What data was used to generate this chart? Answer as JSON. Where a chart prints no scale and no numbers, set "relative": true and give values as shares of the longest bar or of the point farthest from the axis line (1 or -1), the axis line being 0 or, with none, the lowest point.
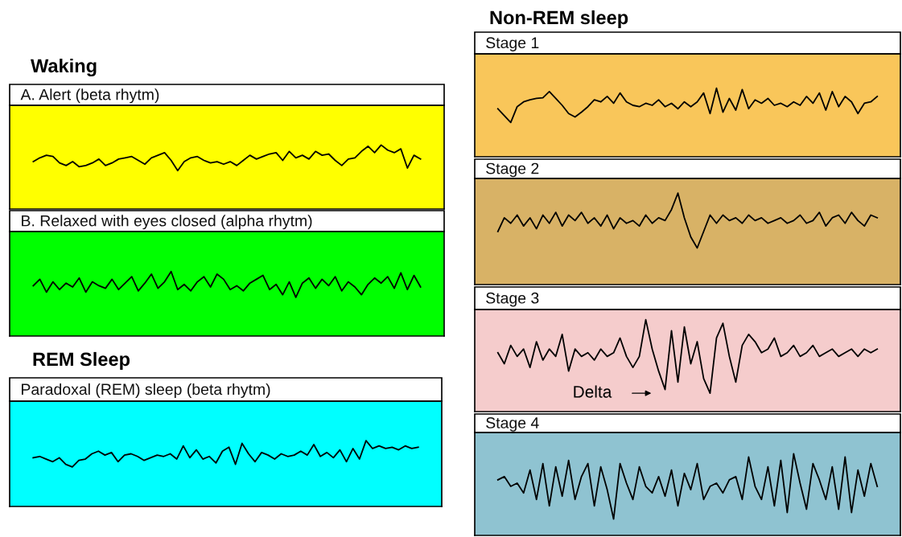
{
  "chart_data": [
    {
      "type": "line",
      "title": "A. Alert (beta rhytm)",
      "annotations": [
        "Waking"
      ],
      "relative": true,
      "categories": [
        null,
        null,
        null,
        null,
        null,
        null,
        null,
        null,
        null,
        null,
        null,
        null,
        null,
        null,
        null,
        null,
        null,
        null,
        null,
        null,
        null,
        null,
        null,
        null,
        null,
        null,
        null,
        null,
        null,
        null,
        null,
        null,
        null,
        null,
        null,
        null,
        null,
        null,
        null,
        null,
        null,
        null,
        null,
        null,
        null,
        null,
        null,
        null,
        null,
        null,
        null,
        null,
        null,
        null,
        null,
        null,
        null,
        null,
        null,
        null
      ],
      "series": [
        {
          "color": "#000000",
          "values": [
            0.74,
            0.8,
            0.84,
            0.82,
            0.72,
            0.68,
            0.74,
            0.66,
            0.68,
            0.72,
            0.78,
            0.68,
            0.72,
            0.78,
            0.8,
            0.82,
            0.76,
            0.7,
            0.8,
            0.84,
            0.88,
            0.76,
            0.6,
            0.74,
            0.8,
            0.82,
            0.76,
            0.72,
            0.74,
            0.7,
            0.74,
            0.68,
            0.76,
            0.84,
            0.78,
            0.82,
            0.86,
            0.88,
            0.76,
            0.9,
            0.8,
            0.84,
            0.78,
            0.9,
            0.84,
            0.86,
            0.76,
            0.68,
            0.78,
            0.8,
            0.9,
            0.98,
            0.88,
            1.0,
            0.92,
            0.88,
            0.94,
            0.64,
            0.84,
            0.78
          ]
        }
      ]
    },
    {
      "type": "line",
      "title": "B. Relaxed with eyes closed (alpha rhytm)",
      "relative": true,
      "categories": [
        null,
        null,
        null,
        null,
        null,
        null,
        null,
        null,
        null,
        null,
        null,
        null,
        null,
        null,
        null,
        null,
        null,
        null,
        null,
        null,
        null,
        null,
        null,
        null,
        null,
        null,
        null,
        null,
        null,
        null,
        null,
        null,
        null,
        null,
        null,
        null,
        null,
        null,
        null,
        null,
        null,
        null,
        null,
        null,
        null,
        null,
        null,
        null,
        null,
        null,
        null,
        null,
        null,
        null,
        null,
        null,
        null,
        null,
        null,
        null
      ],
      "series": [
        {
          "color": "#000000",
          "values": [
            0.78,
            0.88,
            0.68,
            0.84,
            0.72,
            0.82,
            0.76,
            0.9,
            0.68,
            0.84,
            0.78,
            0.74,
            0.88,
            0.72,
            0.82,
            0.92,
            0.7,
            0.82,
            0.96,
            0.74,
            0.84,
            1.0,
            0.72,
            0.8,
            0.7,
            0.84,
            0.92,
            0.76,
            0.96,
            0.88,
            0.72,
            0.78,
            0.7,
            0.82,
            0.88,
            0.94,
            0.72,
            0.8,
            0.64,
            0.84,
            0.6,
            0.82,
            0.9,
            0.74,
            0.88,
            0.78,
            0.92,
            0.7,
            0.84,
            0.76,
            0.64,
            0.8,
            0.9,
            0.82,
            0.92,
            0.74,
            0.98,
            0.72,
            0.94,
            0.76
          ]
        }
      ]
    },
    {
      "type": "line",
      "title": "Paradoxal (REM) sleep (beta rhytm)",
      "annotations": [
        "REM Sleep"
      ],
      "relative": true,
      "categories": [
        null,
        null,
        null,
        null,
        null,
        null,
        null,
        null,
        null,
        null,
        null,
        null,
        null,
        null,
        null,
        null,
        null,
        null,
        null,
        null,
        null,
        null,
        null,
        null,
        null,
        null,
        null,
        null,
        null,
        null,
        null,
        null,
        null,
        null,
        null,
        null,
        null,
        null,
        null,
        null,
        null,
        null,
        null,
        null,
        null,
        null,
        null,
        null,
        null,
        null,
        null,
        null,
        null,
        null,
        null,
        null,
        null,
        null,
        null,
        null
      ],
      "series": [
        {
          "color": "#000000",
          "values": [
            0.74,
            0.76,
            0.72,
            0.68,
            0.74,
            0.64,
            0.6,
            0.7,
            0.72,
            0.8,
            0.84,
            0.78,
            0.82,
            0.68,
            0.78,
            0.8,
            0.76,
            0.7,
            0.74,
            0.78,
            0.76,
            0.8,
            0.72,
            0.92,
            0.74,
            0.86,
            0.72,
            0.76,
            0.66,
            0.84,
            0.9,
            0.64,
            0.96,
            0.8,
            0.68,
            0.82,
            0.78,
            0.72,
            0.8,
            0.76,
            0.78,
            0.84,
            0.78,
            0.94,
            0.76,
            0.82,
            0.74,
            0.86,
            0.68,
            0.88,
            0.72,
            1.0,
            0.88,
            0.92,
            0.88,
            0.9,
            0.86,
            0.92,
            0.88,
            0.9
          ]
        }
      ]
    },
    {
      "type": "line",
      "title": "Stage 1",
      "annotations": [
        "Non-REM sleep"
      ],
      "relative": true,
      "categories": [
        null,
        null,
        null,
        null,
        null,
        null,
        null,
        null,
        null,
        null,
        null,
        null,
        null,
        null,
        null,
        null,
        null,
        null,
        null,
        null,
        null,
        null,
        null,
        null,
        null,
        null,
        null,
        null,
        null,
        null,
        null,
        null,
        null,
        null,
        null,
        null,
        null,
        null,
        null,
        null,
        null,
        null,
        null,
        null,
        null,
        null,
        null,
        null,
        null,
        null,
        null,
        null,
        null,
        null,
        null,
        null,
        null,
        null,
        null,
        null
      ],
      "series": [
        {
          "color": "#000000",
          "values": [
            0.7,
            0.6,
            0.5,
            0.73,
            0.8,
            0.83,
            0.85,
            0.86,
            0.95,
            0.85,
            0.75,
            0.63,
            0.58,
            0.65,
            0.73,
            0.83,
            0.8,
            0.88,
            0.78,
            0.93,
            0.8,
            0.75,
            0.73,
            0.78,
            0.75,
            0.83,
            0.73,
            0.78,
            0.7,
            0.8,
            0.73,
            0.8,
            0.93,
            0.63,
            1.0,
            0.65,
            0.85,
            0.68,
            0.98,
            0.7,
            0.83,
            0.78,
            0.85,
            0.75,
            0.78,
            0.73,
            0.8,
            0.75,
            0.88,
            0.78,
            0.93,
            0.68,
            0.95,
            0.73,
            0.88,
            0.8,
            0.63,
            0.78,
            0.8,
            0.88
          ]
        }
      ]
    },
    {
      "type": "line",
      "title": "Stage 2",
      "relative": true,
      "categories": [
        null,
        null,
        null,
        null,
        null,
        null,
        null,
        null,
        null,
        null,
        null,
        null,
        null,
        null,
        null,
        null,
        null,
        null,
        null,
        null,
        null,
        null,
        null,
        null,
        null,
        null,
        null,
        null,
        null,
        null,
        null,
        null,
        null,
        null,
        null,
        null,
        null,
        null,
        null,
        null,
        null,
        null,
        null,
        null,
        null,
        null,
        null,
        null,
        null,
        null,
        null,
        null,
        null,
        null,
        null,
        null,
        null,
        null,
        null,
        null
      ],
      "series": [
        {
          "color": "#000000",
          "values": [
            0.58,
            0.73,
            0.67,
            0.76,
            0.64,
            0.73,
            0.61,
            0.76,
            0.67,
            0.79,
            0.64,
            0.76,
            0.7,
            0.79,
            0.67,
            0.73,
            0.64,
            0.76,
            0.61,
            0.73,
            0.67,
            0.7,
            0.64,
            0.76,
            0.67,
            0.73,
            0.7,
            0.82,
            1.0,
            0.73,
            0.52,
            0.4,
            0.58,
            0.76,
            0.67,
            0.76,
            0.7,
            0.73,
            0.67,
            0.76,
            0.7,
            0.73,
            0.67,
            0.7,
            0.73,
            0.67,
            0.7,
            0.76,
            0.67,
            0.7,
            0.79,
            0.64,
            0.73,
            0.76,
            0.67,
            0.79,
            0.7,
            0.64,
            0.76,
            0.73
          ]
        }
      ]
    },
    {
      "type": "line",
      "title": "Stage 3",
      "annotations": [
        "Delta"
      ],
      "relative": true,
      "categories": [
        null,
        null,
        null,
        null,
        null,
        null,
        null,
        null,
        null,
        null,
        null,
        null,
        null,
        null,
        null,
        null,
        null,
        null,
        null,
        null,
        null,
        null,
        null,
        null,
        null,
        null,
        null,
        null,
        null,
        null,
        null,
        null,
        null,
        null,
        null,
        null,
        null,
        null,
        null,
        null,
        null,
        null,
        null,
        null,
        null,
        null,
        null,
        null,
        null,
        null,
        null,
        null,
        null,
        null,
        null,
        null,
        null,
        null,
        null,
        null
      ],
      "series": [
        {
          "color": "#000000",
          "values": [
            0.64,
            0.52,
            0.72,
            0.6,
            0.68,
            0.48,
            0.76,
            0.56,
            0.68,
            0.6,
            0.84,
            0.44,
            0.68,
            0.6,
            0.64,
            0.56,
            0.68,
            0.6,
            0.64,
            0.8,
            0.6,
            0.48,
            0.6,
            1.0,
            0.68,
            0.44,
            0.24,
            0.88,
            0.32,
            0.92,
            0.52,
            0.76,
            0.36,
            0.2,
            0.8,
            0.96,
            0.6,
            0.32,
            0.72,
            0.84,
            0.76,
            0.64,
            0.68,
            0.8,
            0.6,
            0.64,
            0.72,
            0.6,
            0.64,
            0.72,
            0.6,
            0.64,
            0.68,
            0.6,
            0.64,
            0.68,
            0.6,
            0.68,
            0.64,
            0.68
          ]
        }
      ]
    },
    {
      "type": "line",
      "title": "Stage 4",
      "relative": true,
      "categories": [
        null,
        null,
        null,
        null,
        null,
        null,
        null,
        null,
        null,
        null,
        null,
        null,
        null,
        null,
        null,
        null,
        null,
        null,
        null,
        null,
        null,
        null,
        null,
        null,
        null,
        null,
        null,
        null,
        null,
        null,
        null,
        null,
        null,
        null,
        null,
        null,
        null,
        null,
        null,
        null,
        null,
        null,
        null,
        null,
        null,
        null,
        null,
        null,
        null,
        null,
        null,
        null,
        null,
        null,
        null,
        null,
        null,
        null,
        null,
        null
      ],
      "series": [
        {
          "color": "#000000",
          "values": [
            0.68,
            0.72,
            0.6,
            0.64,
            0.52,
            0.8,
            0.44,
            0.88,
            0.36,
            0.84,
            0.48,
            0.92,
            0.44,
            0.72,
            0.88,
            0.36,
            0.84,
            0.56,
            0.2,
            0.88,
            0.64,
            0.44,
            0.84,
            0.6,
            0.52,
            0.72,
            0.48,
            0.8,
            0.36,
            0.76,
            0.56,
            0.88,
            0.44,
            0.6,
            0.64,
            0.52,
            0.68,
            0.72,
            0.44,
            0.96,
            0.6,
            0.44,
            0.84,
            0.36,
            0.92,
            0.28,
            1.0,
            0.64,
            0.32,
            0.88,
            0.68,
            0.44,
            0.84,
            0.32,
            0.96,
            0.28,
            0.8,
            0.48,
            0.88,
            0.6
          ]
        }
      ]
    }
  ]
}
